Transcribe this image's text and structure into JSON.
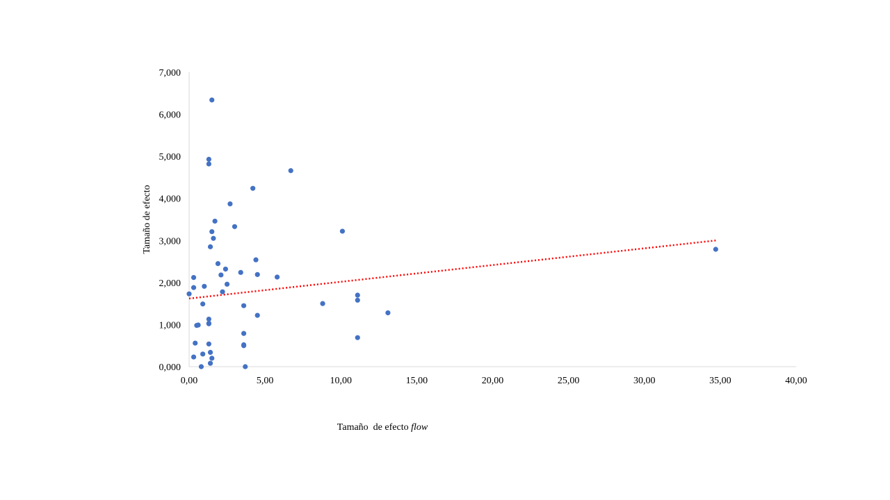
{
  "chart_data": {
    "type": "scatter",
    "title": "",
    "xlabel": "Tamaño  de efecto ",
    "xlabel_italic": "flow",
    "ylabel": "Tamaño  de efecto",
    "xlim": [
      0,
      40
    ],
    "ylim": [
      0,
      7
    ],
    "xticks": [
      "0,00",
      "5,00",
      "10,00",
      "15,00",
      "20,00",
      "25,00",
      "30,00",
      "35,00",
      "40,00"
    ],
    "yticks": [
      "0,000",
      "1,000",
      "2,000",
      "3,000",
      "4,000",
      "5,000",
      "6,000",
      "7,000"
    ],
    "grid": false,
    "legend": "none",
    "colors": {
      "points": "#4472C4",
      "trendline": "#FF0000",
      "axis": "#D9D9D9"
    },
    "series": [
      {
        "points": [
          [
            0.0,
            1.73
          ],
          [
            0.3,
            2.12
          ],
          [
            0.3,
            1.88
          ],
          [
            0.3,
            0.23
          ],
          [
            0.4,
            0.56
          ],
          [
            0.5,
            0.98
          ],
          [
            0.6,
            0.99
          ],
          [
            0.8,
            0.0
          ],
          [
            0.9,
            0.3
          ],
          [
            0.9,
            1.49
          ],
          [
            1.0,
            1.91
          ],
          [
            1.3,
            4.93
          ],
          [
            1.3,
            4.82
          ],
          [
            1.3,
            1.13
          ],
          [
            1.3,
            1.02
          ],
          [
            1.3,
            1.03
          ],
          [
            1.3,
            0.54
          ],
          [
            1.4,
            0.34
          ],
          [
            1.4,
            0.08
          ],
          [
            1.5,
            0.2
          ],
          [
            1.5,
            6.34
          ],
          [
            1.5,
            3.21
          ],
          [
            1.4,
            2.85
          ],
          [
            1.6,
            3.05
          ],
          [
            1.7,
            3.46
          ],
          [
            1.9,
            2.45
          ],
          [
            2.1,
            2.18
          ],
          [
            2.2,
            1.78
          ],
          [
            2.4,
            2.32
          ],
          [
            2.5,
            1.96
          ],
          [
            2.7,
            3.87
          ],
          [
            3.0,
            3.33
          ],
          [
            3.4,
            2.24
          ],
          [
            3.6,
            1.45
          ],
          [
            3.6,
            0.79
          ],
          [
            3.6,
            0.52
          ],
          [
            3.6,
            0.5
          ],
          [
            3.7,
            0.0
          ],
          [
            4.2,
            4.24
          ],
          [
            4.4,
            2.54
          ],
          [
            4.5,
            2.19
          ],
          [
            4.5,
            1.22
          ],
          [
            5.8,
            2.13
          ],
          [
            6.7,
            4.66
          ],
          [
            8.8,
            1.5
          ],
          [
            10.1,
            3.22
          ],
          [
            11.1,
            1.7
          ],
          [
            11.1,
            1.58
          ],
          [
            11.1,
            0.69
          ],
          [
            13.1,
            1.28
          ],
          [
            34.7,
            2.79
          ]
        ]
      }
    ],
    "trendline": {
      "type": "linear",
      "style": "dotted",
      "x": [
        0.0,
        34.7
      ],
      "y": [
        1.62,
        3.0
      ]
    }
  }
}
